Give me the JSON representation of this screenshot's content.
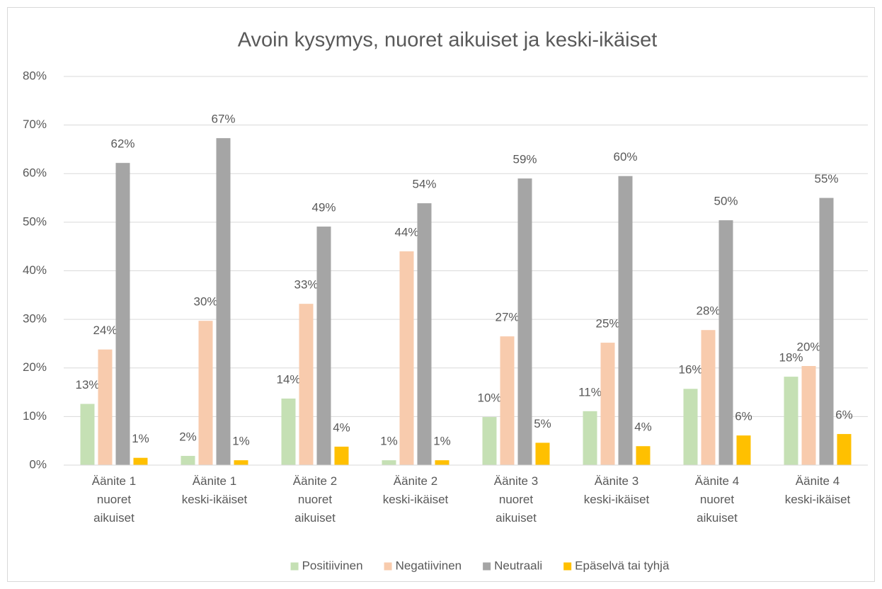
{
  "chart_data": {
    "type": "bar",
    "title": "Avoin kysymys, nuoret aikuiset ja keski-ikäiset",
    "categories": [
      "Äänite 1 nuoret aikuiset",
      "Äänite 1 keski-ikäiset",
      "Äänite 2 nuoret aikuiset",
      "Äänite 2 keski-ikäiset",
      "Äänite 3 nuoret aikuiset",
      "Äänite 3 keski-ikäiset",
      "Äänite 4 nuoret aikuiset",
      "Äänite 4 keski-ikäiset"
    ],
    "series": [
      {
        "name": "Positiivinen",
        "color": "#c5e0b4",
        "values": [
          12.6,
          1.9,
          13.7,
          1.0,
          9.9,
          11.1,
          15.7,
          18.2
        ],
        "value_labels": [
          "13%",
          "2%",
          "14%",
          "1%",
          "10%",
          "11%",
          "16%",
          "18%"
        ]
      },
      {
        "name": "Negatiivinen",
        "color": "#f8cbad",
        "values": [
          23.8,
          29.7,
          33.2,
          44.0,
          26.5,
          25.2,
          27.8,
          20.4
        ],
        "value_labels": [
          "24%",
          "30%",
          "33%",
          "44%",
          "27%",
          "25%",
          "28%",
          "20%"
        ]
      },
      {
        "name": "Neutraali",
        "color": "#a5a5a5",
        "values": [
          62.2,
          67.3,
          49.1,
          53.9,
          59.0,
          59.5,
          50.4,
          55.0
        ],
        "value_labels": [
          "62%",
          "67%",
          "49%",
          "54%",
          "59%",
          "60%",
          "50%",
          "55%"
        ]
      },
      {
        "name": "Epäselvä tai tyhjä",
        "color": "#ffc000",
        "values": [
          1.5,
          1.0,
          3.8,
          1.0,
          4.6,
          3.9,
          6.1,
          6.4
        ],
        "value_labels": [
          "1%",
          "1%",
          "4%",
          "1%",
          "5%",
          "4%",
          "6%",
          "6%"
        ]
      }
    ],
    "ylim": [
      0,
      80
    ],
    "yticks": [
      {
        "value": 0,
        "label": "0%"
      },
      {
        "value": 10,
        "label": "10%"
      },
      {
        "value": 20,
        "label": "20%"
      },
      {
        "value": 30,
        "label": "30%"
      },
      {
        "value": 40,
        "label": "40%"
      },
      {
        "value": 50,
        "label": "50%"
      },
      {
        "value": 60,
        "label": "60%"
      },
      {
        "value": 70,
        "label": "70%"
      },
      {
        "value": 80,
        "label": "80%"
      }
    ],
    "grid": true,
    "legend": "bottom"
  }
}
